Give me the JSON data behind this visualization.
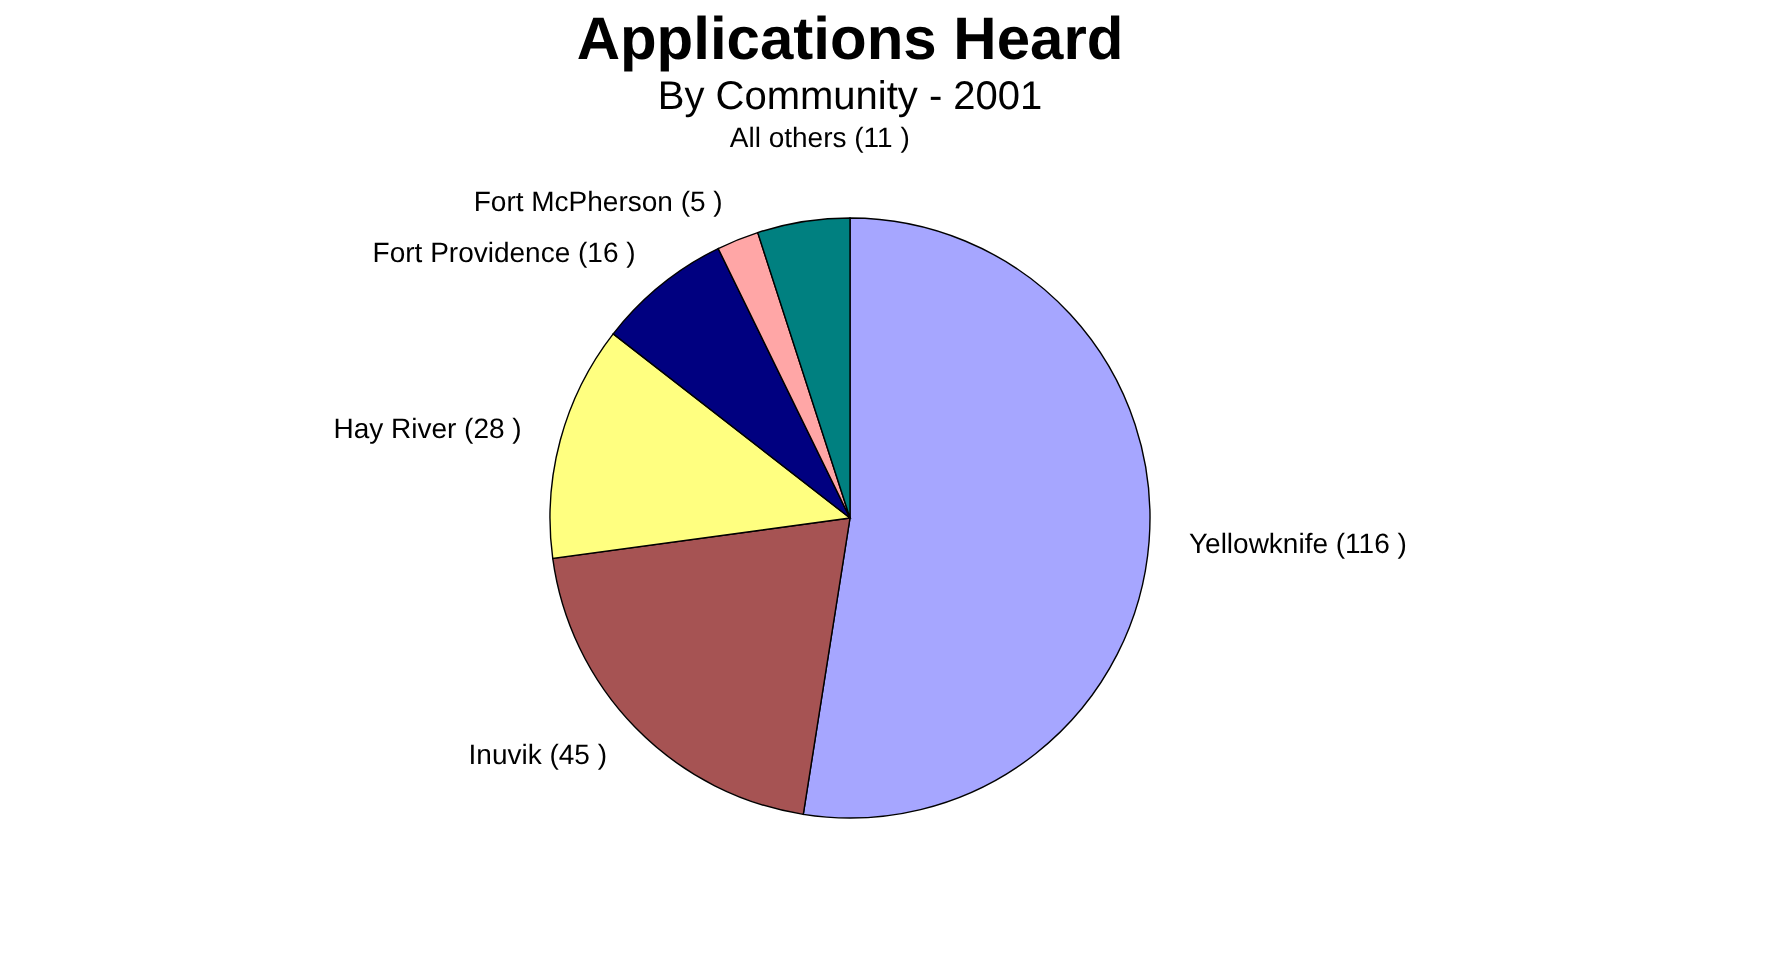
{
  "chart_data": {
    "type": "pie",
    "title": "Applications Heard",
    "subtitle": "By Community - 2001",
    "categories": [
      "Yellowknife",
      "Inuvik",
      "Hay River",
      "Fort Providence",
      "Fort McPherson",
      "All others"
    ],
    "values": [
      116,
      45,
      28,
      16,
      5,
      11
    ],
    "value_labels": [
      "(116 )",
      "(45 )",
      "(28 )",
      "(16 )",
      "(5 )",
      "(11 )"
    ],
    "colors": [
      "#a6a6ff",
      "#a65353",
      "#ffff80",
      "#000080",
      "#ffa6a6",
      "#008080"
    ],
    "legend": false
  }
}
